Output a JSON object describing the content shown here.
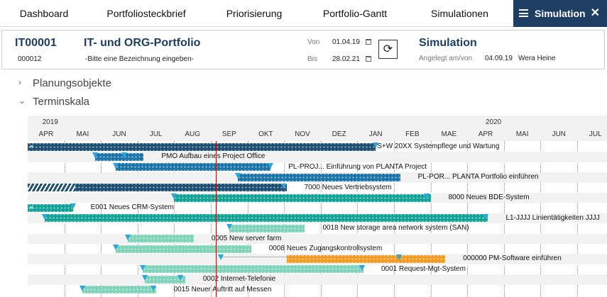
{
  "nav": {
    "tabs": [
      "Dashboard",
      "Portfoliosteckbrief",
      "Priorisierung",
      "Portfolio-Gantt",
      "Simulationen"
    ],
    "active": "Simulation",
    "close": "✕"
  },
  "header": {
    "id": "IT00001",
    "sub_id": "000012",
    "title": "IT- und ORG-Portfolio",
    "description": "-Bitte eine Bezeichnung eingeben-",
    "von_label": "Von",
    "von": "01.04.19",
    "bis_label": "Bis",
    "bis": "28.02.21",
    "sim_title": "Simulation",
    "created_label": "Angelegt am/von",
    "created_date": "04.09.19",
    "created_by": "Wera Heine"
  },
  "sections": {
    "planning": "Planungsobjekte",
    "timescale": "Terminskala"
  },
  "timescale": {
    "years": [
      {
        "label": "2019",
        "month": 4.4
      },
      {
        "label": "2020",
        "month": 16.5
      }
    ],
    "months": [
      "APR",
      "MAI",
      "JUN",
      "JUL",
      "AUG",
      "SEP",
      "OKT",
      "NOV",
      "DEZ",
      "JAN",
      "FEB",
      "MAE",
      "APR",
      "MAI",
      "JUN",
      "JUL"
    ],
    "today": "2019-09-05"
  },
  "colors": {
    "dark": "#1d4f73",
    "blue": "#1b75a8",
    "teal": "#12a396",
    "light": "#7fd3b8",
    "orange": "#f29a22",
    "milestone": "#2aa7e0"
  },
  "rows": [
    {
      "label": "S+W 20XX Systempflege und Wartung",
      "start": "2019-04-01",
      "end": "2020-01-16",
      "color": "dark",
      "back": true,
      "ms": [
        "2020-01-16"
      ]
    },
    {
      "label": "PMO  Aufbau eines Project Office",
      "start": "2019-05-26",
      "end": "2019-07-06",
      "color": "blue",
      "ms": [
        "2019-05-26",
        "2019-06-20"
      ]
    },
    {
      "label": "PL-PROJ...  Einführung von PLANTA Project",
      "start": "2019-06-13",
      "end": "2019-10-20",
      "color": "blue",
      "ms": [
        "2019-06-13",
        "2019-10-20"
      ]
    },
    {
      "label": "PL-POR...  PLANTA Portfolio einführen",
      "start": "2019-09-23",
      "end": "2020-02-06",
      "color": "blue",
      "ms": [
        "2019-09-23"
      ]
    },
    {
      "label": "7000  Neues Vertriebsystem",
      "start": "2019-04-01",
      "end": "2019-11-03",
      "color": "dark",
      "hatch_end": "2019-05-10",
      "ms": [
        "2019-11-01"
      ]
    },
    {
      "label": "8000  Neues BDE-System",
      "start": "2019-08-01",
      "end": "2020-03-01",
      "color": "teal",
      "ms": [
        "2019-08-01",
        "2020-02-28"
      ]
    },
    {
      "label": "E001  Neues CRM-System",
      "start": "2019-04-01",
      "end": "2019-05-08",
      "color": "teal",
      "back": true,
      "ms": [
        "2019-05-08"
      ]
    },
    {
      "label": "L1-JJJJ  Linientätigkeiten JJJJ",
      "start": "2019-04-15",
      "end": "2020-04-18",
      "color": "teal",
      "ms": [
        "2019-04-15",
        "2020-04-16"
      ]
    },
    {
      "label": "0018  New storage area network system (SAN)",
      "start": "2019-09-16",
      "end": "2019-11-18",
      "color": "light",
      "ms": [
        "2019-09-16"
      ]
    },
    {
      "label": "0005  New server farm",
      "start": "2019-06-23",
      "end": "2019-08-17",
      "color": "light",
      "ms": [
        "2019-06-23"
      ]
    },
    {
      "label": "0008  Neues Zugangskontrollsystem",
      "start": "2019-06-13",
      "end": "2019-10-04",
      "color": "light",
      "ms": [
        "2019-06-13"
      ]
    },
    {
      "label": "000000  PM-Software einführen",
      "start": "2019-11-03",
      "end": "2020-03-13",
      "color": "orange",
      "pre_start": "2019-09-09",
      "ms": [
        "2019-09-09",
        "2020-02-05"
      ]
    },
    {
      "label": "0001  Request-Mgt-System",
      "start": "2019-07-05",
      "end": "2020-01-06",
      "color": "light",
      "ms": [
        "2019-07-05",
        "2020-01-05"
      ]
    },
    {
      "label": "0002  Internet-Telefonie",
      "start": "2019-07-07",
      "end": "2019-08-10",
      "color": "light",
      "ms": [
        "2019-07-07",
        "2019-08-06"
      ]
    },
    {
      "label": "0015  Neuer Auftritt auf Messen",
      "start": "2019-05-16",
      "end": "2019-07-16",
      "color": "light",
      "ms": [
        "2019-05-16",
        "2019-07-14"
      ]
    }
  ]
}
